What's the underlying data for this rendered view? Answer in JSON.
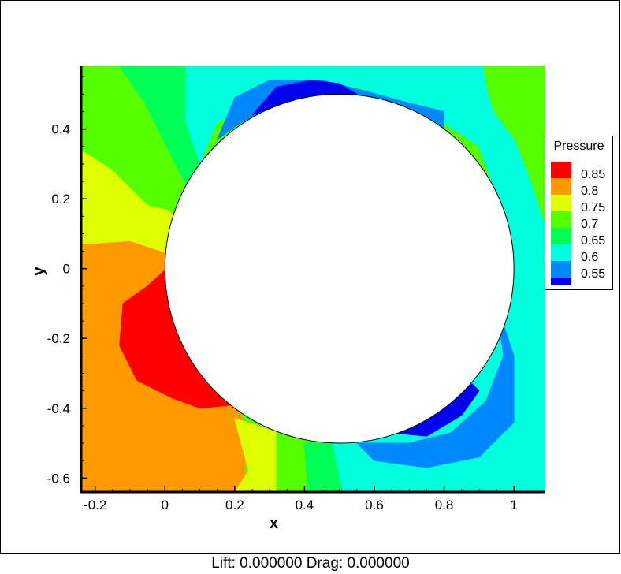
{
  "chart_data": {
    "type": "contour",
    "xlabel": "x",
    "ylabel": "y",
    "xlim": [
      -0.24,
      1.09
    ],
    "ylim": [
      -0.64,
      0.58
    ],
    "x_ticks": [
      "-0.2",
      "0",
      "0.2",
      "0.4",
      "0.6",
      "0.8",
      "1"
    ],
    "y_ticks": [
      "0.4",
      "0.2",
      "0",
      "-0.2",
      "-0.4",
      "-0.6"
    ],
    "x_tick_values": [
      -0.2,
      0,
      0.2,
      0.4,
      0.6,
      0.8,
      1.0
    ],
    "y_tick_values": [
      0.4,
      0.2,
      0,
      -0.2,
      -0.4,
      -0.6
    ],
    "obstacle": {
      "shape": "circle",
      "center": [
        0.5,
        0.0
      ],
      "radius": 0.5
    },
    "legend": {
      "title": "Pressure",
      "placement": "right",
      "levels": [
        {
          "label": "0.85",
          "value": 0.85,
          "color": "#ff0000"
        },
        {
          "label": "0.8",
          "value": 0.8,
          "color": "#ff9900"
        },
        {
          "label": "0.75",
          "value": 0.75,
          "color": "#ddff00"
        },
        {
          "label": "0.7",
          "value": 0.7,
          "color": "#55ff00"
        },
        {
          "label": "0.65",
          "value": 0.65,
          "color": "#00ff55"
        },
        {
          "label": "0.6",
          "value": 0.6,
          "color": "#00ffdd"
        },
        {
          "label": "0.55",
          "value": 0.55,
          "color": "#0088ff"
        }
      ],
      "below_min_color": "#0000ee"
    },
    "regions": [
      {
        "level": 0.8,
        "color": "#ff9900",
        "points": [
          [
            -0.24,
            0.07
          ],
          [
            -0.1,
            0.1
          ],
          [
            0.01,
            0.06
          ],
          [
            0.03,
            -0.02
          ],
          [
            0.1,
            -0.2
          ],
          [
            0.2,
            -0.38
          ],
          [
            0.23,
            -0.45
          ],
          [
            0.23,
            -0.6
          ],
          [
            0.22,
            -0.64
          ],
          [
            -0.24,
            -0.64
          ]
        ]
      },
      {
        "level": 0.85,
        "color": "#ff0000",
        "points": [
          [
            0.005,
            0.0
          ],
          [
            -0.05,
            -0.05
          ],
          [
            -0.12,
            -0.1
          ],
          [
            -0.13,
            -0.22
          ],
          [
            -0.08,
            -0.32
          ],
          [
            0.02,
            -0.37
          ],
          [
            0.1,
            -0.4
          ],
          [
            0.2,
            -0.39
          ],
          [
            0.14,
            -0.28
          ],
          [
            0.07,
            -0.18
          ]
        ]
      },
      {
        "level": 0.75,
        "color": "#ddff00",
        "points": [
          [
            -0.24,
            0.34
          ],
          [
            -0.15,
            0.28
          ],
          [
            -0.05,
            0.18
          ],
          [
            0.04,
            0.16
          ],
          [
            0.02,
            0.04
          ],
          [
            -0.1,
            0.08
          ],
          [
            -0.24,
            0.07
          ]
        ]
      },
      {
        "level": 0.75,
        "color": "#ddff00",
        "points": [
          [
            0.2,
            -0.43
          ],
          [
            0.33,
            -0.47
          ],
          [
            0.32,
            -0.64
          ],
          [
            0.2,
            -0.64
          ],
          [
            0.24,
            -0.58
          ]
        ]
      },
      {
        "level": 0.7,
        "color": "#55ff00",
        "points": [
          [
            -0.24,
            0.58
          ],
          [
            -0.13,
            0.58
          ],
          [
            -0.06,
            0.48
          ],
          [
            0.0,
            0.36
          ],
          [
            0.06,
            0.24
          ],
          [
            0.05,
            0.17
          ],
          [
            0.02,
            0.16
          ],
          [
            -0.1,
            0.26
          ],
          [
            -0.24,
            0.34
          ]
        ]
      },
      {
        "level": 0.7,
        "color": "#55ff00",
        "points": [
          [
            0.32,
            -0.47
          ],
          [
            0.4,
            -0.5
          ],
          [
            0.41,
            -0.64
          ],
          [
            0.32,
            -0.64
          ]
        ]
      },
      {
        "level": 0.7,
        "color": "#55ff00",
        "points": [
          [
            0.91,
            0.58
          ],
          [
            1.09,
            0.58
          ],
          [
            1.09,
            0.12
          ],
          [
            1.04,
            0.27
          ],
          [
            1.0,
            0.37
          ],
          [
            0.94,
            0.45
          ],
          [
            0.92,
            0.52
          ]
        ]
      },
      {
        "level": 0.65,
        "color": "#00ff55",
        "points": [
          [
            -0.13,
            0.58
          ],
          [
            0.06,
            0.58
          ],
          [
            0.06,
            0.42
          ],
          [
            0.1,
            0.3
          ],
          [
            0.08,
            0.22
          ],
          [
            0.06,
            0.24
          ],
          [
            0.0,
            0.36
          ],
          [
            -0.06,
            0.48
          ]
        ]
      },
      {
        "level": 0.65,
        "color": "#00ff55",
        "points": [
          [
            0.4,
            -0.5
          ],
          [
            0.48,
            -0.5
          ],
          [
            0.51,
            -0.64
          ],
          [
            0.41,
            -0.64
          ]
        ]
      },
      {
        "level": 0.6,
        "color": "#00ffdd",
        "points": [
          [
            0.06,
            0.58
          ],
          [
            0.91,
            0.58
          ],
          [
            0.92,
            0.52
          ],
          [
            0.94,
            0.45
          ],
          [
            1.0,
            0.37
          ],
          [
            1.04,
            0.27
          ],
          [
            1.09,
            0.12
          ],
          [
            1.09,
            -0.64
          ],
          [
            0.51,
            -0.64
          ],
          [
            0.48,
            -0.5
          ],
          [
            0.5,
            -0.5
          ],
          [
            0.72,
            -0.45
          ],
          [
            0.9,
            -0.3
          ],
          [
            0.95,
            -0.1
          ],
          [
            0.99,
            0.1
          ],
          [
            0.9,
            0.35
          ],
          [
            0.75,
            0.45
          ],
          [
            0.55,
            0.52
          ],
          [
            0.3,
            0.48
          ],
          [
            0.15,
            0.42
          ],
          [
            0.1,
            0.3
          ],
          [
            0.06,
            0.42
          ]
        ]
      },
      {
        "level": 0.55,
        "color": "#0088ff",
        "points": [
          [
            0.15,
            0.37
          ],
          [
            0.2,
            0.49
          ],
          [
            0.3,
            0.54
          ],
          [
            0.45,
            0.54
          ],
          [
            0.57,
            0.51
          ],
          [
            0.68,
            0.48
          ],
          [
            0.8,
            0.45
          ],
          [
            0.8,
            0.4
          ],
          [
            0.7,
            0.44
          ],
          [
            0.55,
            0.5
          ],
          [
            0.35,
            0.48
          ],
          [
            0.22,
            0.42
          ]
        ]
      },
      {
        "level": 0.55,
        "color": "#0088ff",
        "points": [
          [
            0.55,
            -0.5
          ],
          [
            0.7,
            -0.5
          ],
          [
            0.82,
            -0.47
          ],
          [
            0.92,
            -0.38
          ],
          [
            0.97,
            -0.25
          ],
          [
            0.95,
            -0.1
          ],
          [
            1.0,
            -0.25
          ],
          [
            1.0,
            -0.44
          ],
          [
            0.9,
            -0.54
          ],
          [
            0.75,
            -0.57
          ],
          [
            0.6,
            -0.55
          ]
        ]
      },
      {
        "level": 0.5,
        "color": "#0000ee",
        "points": [
          [
            0.25,
            0.44
          ],
          [
            0.32,
            0.52
          ],
          [
            0.42,
            0.54
          ],
          [
            0.5,
            0.53
          ],
          [
            0.55,
            0.5
          ],
          [
            0.45,
            0.5
          ],
          [
            0.35,
            0.48
          ]
        ]
      },
      {
        "level": 0.5,
        "color": "#0000ee",
        "points": [
          [
            0.65,
            -0.47
          ],
          [
            0.75,
            -0.48
          ],
          [
            0.85,
            -0.42
          ],
          [
            0.9,
            -0.35
          ],
          [
            0.88,
            -0.33
          ],
          [
            0.8,
            -0.4
          ],
          [
            0.7,
            -0.45
          ]
        ]
      }
    ]
  },
  "footer": {
    "text": "Lift: 0.000000 Drag: 0.000000"
  }
}
